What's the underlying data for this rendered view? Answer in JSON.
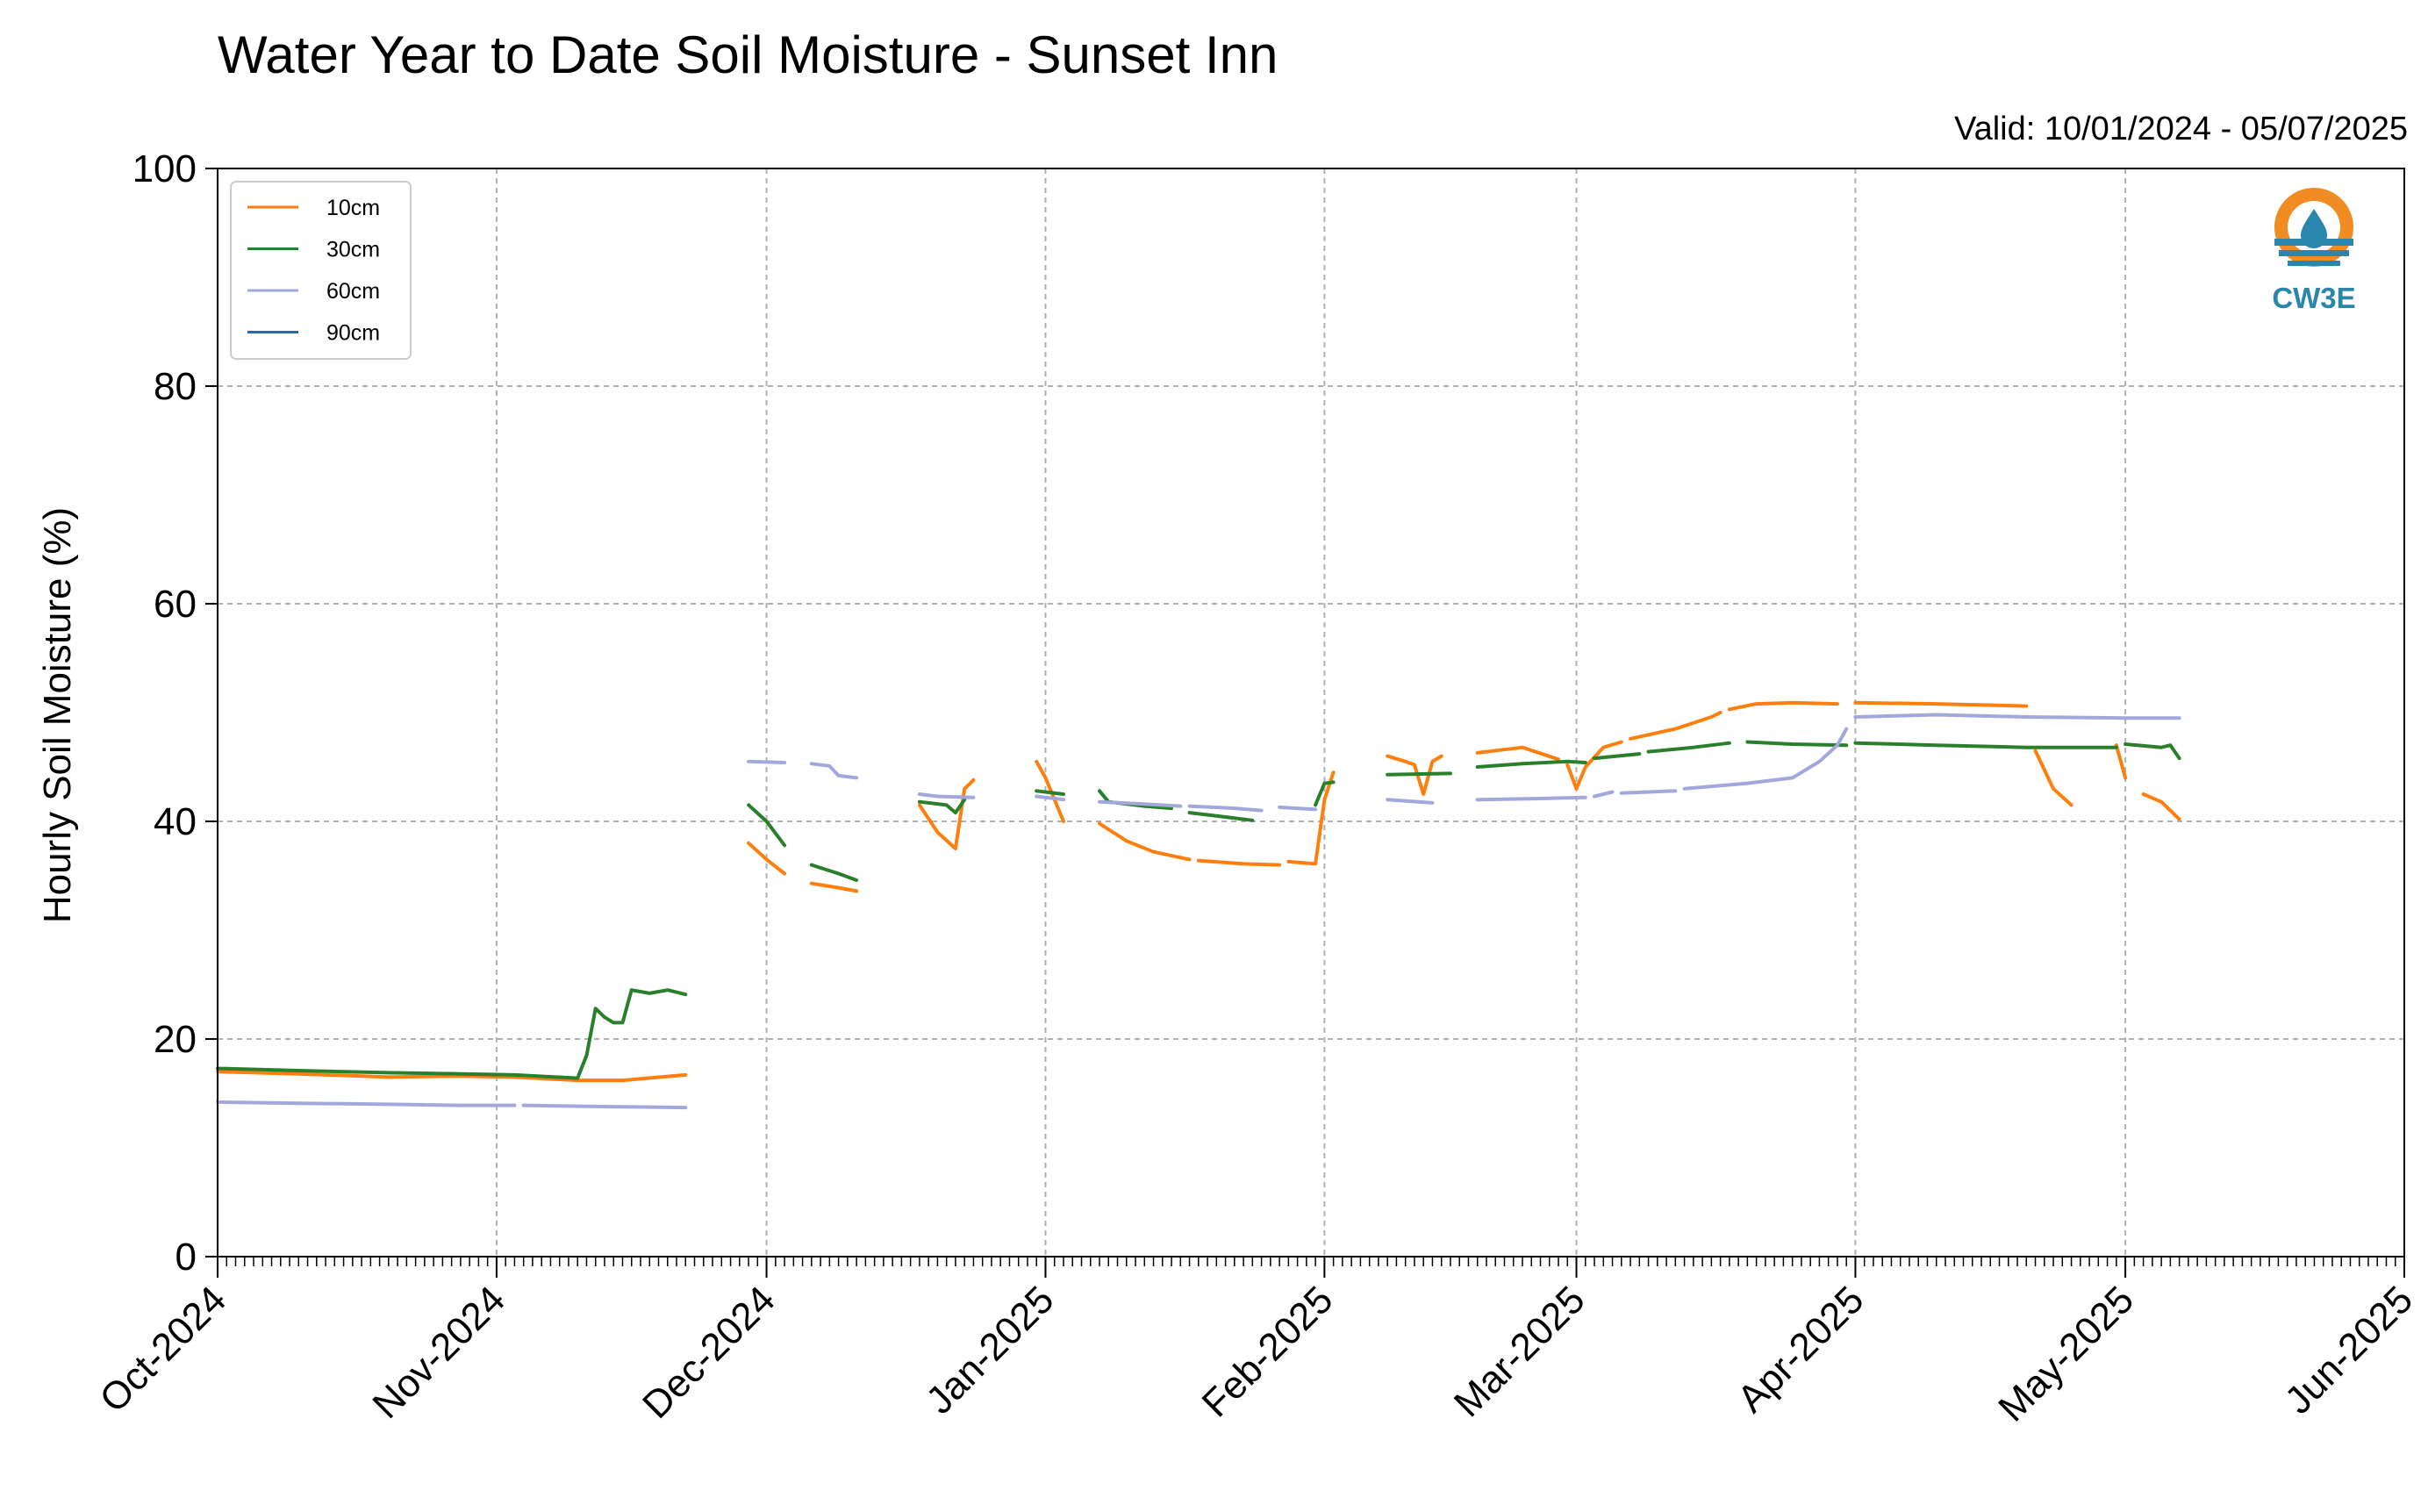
{
  "chart_data": {
    "type": "line",
    "title": "Water Year to Date Soil Moisture - Sunset Inn",
    "subtitle": "Valid: 10/01/2024 - 05/07/2025",
    "xlabel": "",
    "ylabel": "Hourly Soil Moisture (%)",
    "x_axis_type": "date",
    "xlim": [
      "2024-10-01",
      "2025-06-01"
    ],
    "ylim": [
      0,
      100
    ],
    "x_tick_dates": [
      "2024-10-01",
      "2024-11-01",
      "2024-12-01",
      "2025-01-01",
      "2025-02-01",
      "2025-03-01",
      "2025-04-01",
      "2025-05-01",
      "2025-06-01"
    ],
    "x_tick_labels": [
      "Oct-2024",
      "Nov-2024",
      "Dec-2024",
      "Jan-2025",
      "Feb-2025",
      "Mar-2025",
      "Apr-2025",
      "May-2025",
      "Jun-2025"
    ],
    "y_ticks": [
      0,
      20,
      40,
      60,
      80,
      100
    ],
    "y_tick_labels": [
      "0",
      "20",
      "40",
      "60",
      "80",
      "100"
    ],
    "grid": true,
    "legend_position": "top-left",
    "logo_text": "CW3E",
    "series": [
      {
        "name": "10cm",
        "color": "#ff7f0e",
        "segments": [
          [
            [
              "2024-10-01",
              17.0
            ],
            [
              "2024-10-10",
              16.8
            ],
            [
              "2024-10-20",
              16.5
            ],
            [
              "2024-10-28",
              16.6
            ],
            [
              "2024-11-03",
              16.5
            ],
            [
              "2024-11-10",
              16.2
            ],
            [
              "2024-11-15",
              16.2
            ],
            [
              "2024-11-22",
              16.7
            ]
          ],
          [
            [
              "2024-11-29",
              38.0
            ],
            [
              "2024-12-01",
              36.5
            ],
            [
              "2024-12-03",
              35.2
            ]
          ],
          [
            [
              "2024-12-06",
              34.3
            ],
            [
              "2024-12-09",
              33.9
            ],
            [
              "2024-12-11",
              33.6
            ]
          ],
          [
            [
              "2024-12-18",
              41.5
            ],
            [
              "2024-12-20",
              39.0
            ],
            [
              "2024-12-22",
              37.5
            ],
            [
              "2024-12-23",
              43.0
            ],
            [
              "2024-12-24",
              43.8
            ]
          ],
          [
            [
              "2024-12-31",
              45.5
            ],
            [
              "2025-01-01",
              44.0
            ],
            [
              "2025-01-03",
              40.0
            ]
          ],
          [
            [
              "2025-01-07",
              39.8
            ],
            [
              "2025-01-10",
              38.2
            ],
            [
              "2025-01-13",
              37.2
            ],
            [
              "2025-01-17",
              36.5
            ]
          ],
          [
            [
              "2025-01-18",
              36.4
            ],
            [
              "2025-01-23",
              36.1
            ],
            [
              "2025-01-27",
              36.0
            ]
          ],
          [
            [
              "2025-01-28",
              36.3
            ],
            [
              "2025-01-31",
              36.1
            ],
            [
              "2025-02-01",
              42.0
            ],
            [
              "2025-02-02",
              44.5
            ]
          ],
          [
            [
              "2025-02-08",
              46.0
            ],
            [
              "2025-02-10",
              45.5
            ],
            [
              "2025-02-11",
              45.2
            ],
            [
              "2025-02-12",
              42.5
            ],
            [
              "2025-02-13",
              45.5
            ],
            [
              "2025-02-14",
              46.0
            ]
          ],
          [
            [
              "2025-02-18",
              46.3
            ],
            [
              "2025-02-23",
              46.8
            ],
            [
              "2025-02-27",
              45.7
            ]
          ],
          [
            [
              "2025-02-28",
              45.2
            ],
            [
              "2025-03-01",
              43.0
            ],
            [
              "2025-03-02",
              45.0
            ],
            [
              "2025-03-04",
              46.8
            ],
            [
              "2025-03-06",
              47.3
            ]
          ],
          [
            [
              "2025-03-07",
              47.6
            ],
            [
              "2025-03-12",
              48.5
            ],
            [
              "2025-03-16",
              49.6
            ],
            [
              "2025-03-17",
              50.0
            ]
          ],
          [
            [
              "2025-03-18",
              50.3
            ],
            [
              "2025-03-21",
              50.8
            ],
            [
              "2025-03-25",
              50.9
            ],
            [
              "2025-03-30",
              50.8
            ]
          ],
          [
            [
              "2025-04-01",
              50.9
            ],
            [
              "2025-04-10",
              50.8
            ],
            [
              "2025-04-20",
              50.6
            ]
          ],
          [
            [
              "2025-04-21",
              46.5
            ],
            [
              "2025-04-23",
              43.0
            ],
            [
              "2025-04-25",
              41.5
            ]
          ],
          [
            [
              "2025-04-30",
              47.0
            ],
            [
              "2025-05-01",
              44.0
            ]
          ],
          [
            [
              "2025-05-03",
              42.5
            ],
            [
              "2025-05-05",
              41.8
            ],
            [
              "2025-05-07",
              40.2
            ]
          ]
        ]
      },
      {
        "name": "30cm",
        "color": "#2a7f2a",
        "segments": [
          [
            [
              "2024-10-01",
              17.3
            ],
            [
              "2024-10-10",
              17.1
            ],
            [
              "2024-10-20",
              16.9
            ],
            [
              "2024-10-28",
              16.8
            ],
            [
              "2024-11-03",
              16.7
            ],
            [
              "2024-11-10",
              16.4
            ]
          ],
          [
            [
              "2024-11-10",
              16.4
            ],
            [
              "2024-11-11",
              18.5
            ],
            [
              "2024-11-12",
              22.8
            ],
            [
              "2024-11-13",
              22.0
            ],
            [
              "2024-11-14",
              21.5
            ],
            [
              "2024-11-15",
              21.5
            ],
            [
              "2024-11-16",
              24.5
            ],
            [
              "2024-11-18",
              24.2
            ],
            [
              "2024-11-20",
              24.5
            ],
            [
              "2024-11-22",
              24.1
            ]
          ],
          [
            [
              "2024-11-29",
              41.5
            ],
            [
              "2024-12-01",
              40.0
            ],
            [
              "2024-12-03",
              37.8
            ]
          ],
          [
            [
              "2024-12-06",
              36.0
            ],
            [
              "2024-12-09",
              35.2
            ],
            [
              "2024-12-11",
              34.6
            ]
          ],
          [
            [
              "2024-12-18",
              41.8
            ],
            [
              "2024-12-21",
              41.5
            ],
            [
              "2024-12-22",
              40.8
            ],
            [
              "2024-12-23",
              42.0
            ]
          ],
          [
            [
              "2024-12-31",
              42.8
            ],
            [
              "2025-01-01",
              42.7
            ],
            [
              "2025-01-03",
              42.5
            ]
          ],
          [
            [
              "2025-01-07",
              42.8
            ],
            [
              "2025-01-08",
              41.8
            ],
            [
              "2025-01-12",
              41.4
            ],
            [
              "2025-01-15",
              41.2
            ]
          ],
          [
            [
              "2025-01-17",
              40.8
            ],
            [
              "2025-01-21",
              40.4
            ],
            [
              "2025-01-24",
              40.1
            ]
          ],
          [
            [
              "2025-01-31",
              41.5
            ],
            [
              "2025-02-01",
              43.5
            ],
            [
              "2025-02-02",
              43.6
            ]
          ],
          [
            [
              "2025-02-08",
              44.3
            ],
            [
              "2025-02-15",
              44.4
            ]
          ],
          [
            [
              "2025-02-18",
              45.0
            ],
            [
              "2025-02-23",
              45.3
            ],
            [
              "2025-02-28",
              45.5
            ],
            [
              "2025-03-02",
              45.4
            ]
          ],
          [
            [
              "2025-03-03",
              45.8
            ],
            [
              "2025-03-08",
              46.2
            ]
          ],
          [
            [
              "2025-03-09",
              46.4
            ],
            [
              "2025-03-14",
              46.8
            ],
            [
              "2025-03-18",
              47.2
            ]
          ],
          [
            [
              "2025-03-20",
              47.3
            ],
            [
              "2025-03-25",
              47.1
            ],
            [
              "2025-03-31",
              47.0
            ]
          ],
          [
            [
              "2025-04-01",
              47.2
            ],
            [
              "2025-04-10",
              47.0
            ],
            [
              "2025-04-20",
              46.8
            ],
            [
              "2025-04-30",
              46.8
            ]
          ],
          [
            [
              "2025-05-01",
              47.1
            ],
            [
              "2025-05-05",
              46.8
            ],
            [
              "2025-05-06",
              47.0
            ],
            [
              "2025-05-07",
              45.8
            ]
          ]
        ]
      },
      {
        "name": "60cm",
        "color": "#a3a8dc",
        "segments": [
          [
            [
              "2024-10-01",
              14.2
            ],
            [
              "2024-10-10",
              14.1
            ],
            [
              "2024-10-20",
              14.0
            ],
            [
              "2024-10-28",
              13.9
            ],
            [
              "2024-11-03",
              13.9
            ]
          ],
          [
            [
              "2024-11-04",
              13.9
            ],
            [
              "2024-11-12",
              13.8
            ],
            [
              "2024-11-22",
              13.7
            ]
          ],
          [
            [
              "2024-11-29",
              45.5
            ],
            [
              "2024-12-03",
              45.4
            ]
          ],
          [
            [
              "2024-12-06",
              45.3
            ],
            [
              "2024-12-08",
              45.1
            ],
            [
              "2024-12-09",
              44.2
            ],
            [
              "2024-12-11",
              44.0
            ]
          ],
          [
            [
              "2024-12-18",
              42.5
            ],
            [
              "2024-12-20",
              42.3
            ],
            [
              "2024-12-24",
              42.2
            ]
          ],
          [
            [
              "2024-12-31",
              42.3
            ],
            [
              "2025-01-03",
              42.0
            ]
          ],
          [
            [
              "2025-01-07",
              41.8
            ],
            [
              "2025-01-12",
              41.6
            ],
            [
              "2025-01-16",
              41.4
            ]
          ],
          [
            [
              "2025-01-17",
              41.4
            ],
            [
              "2025-01-22",
              41.2
            ],
            [
              "2025-01-25",
              41.0
            ]
          ],
          [
            [
              "2025-01-27",
              41.3
            ],
            [
              "2025-01-31",
              41.1
            ]
          ],
          [
            [
              "2025-02-08",
              42.0
            ],
            [
              "2025-02-13",
              41.7
            ]
          ],
          [
            [
              "2025-02-18",
              42.0
            ],
            [
              "2025-02-25",
              42.1
            ],
            [
              "2025-03-02",
              42.2
            ]
          ],
          [
            [
              "2025-03-03",
              42.3
            ],
            [
              "2025-03-05",
              42.7
            ]
          ],
          [
            [
              "2025-03-06",
              42.6
            ],
            [
              "2025-03-12",
              42.8
            ]
          ],
          [
            [
              "2025-03-13",
              43.0
            ],
            [
              "2025-03-20",
              43.5
            ],
            [
              "2025-03-25",
              44.0
            ],
            [
              "2025-03-28",
              45.5
            ],
            [
              "2025-03-30",
              47.0
            ],
            [
              "2025-03-31",
              48.5
            ]
          ],
          [
            [
              "2025-04-01",
              49.6
            ],
            [
              "2025-04-10",
              49.8
            ],
            [
              "2025-04-20",
              49.6
            ],
            [
              "2025-05-01",
              49.5
            ],
            [
              "2025-05-07",
              49.5
            ]
          ]
        ]
      },
      {
        "name": "90cm",
        "color": "#2b66b5",
        "segments": []
      }
    ]
  }
}
